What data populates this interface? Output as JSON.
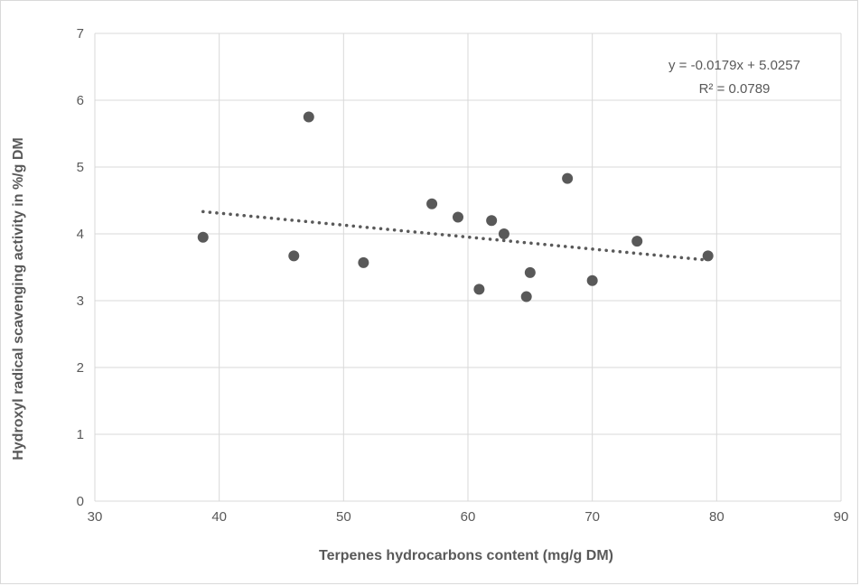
{
  "chart_data": {
    "type": "scatter",
    "title": "",
    "xlabel": "Terpenes hydrocarbons content (mg/g DM)",
    "ylabel": "Hydroxyl radical scavenging activity in %/g DM",
    "xlim": [
      30,
      90
    ],
    "ylim": [
      0,
      7
    ],
    "x_ticks": [
      30,
      40,
      50,
      60,
      70,
      80,
      90
    ],
    "y_ticks": [
      0,
      1,
      2,
      3,
      4,
      5,
      6,
      7
    ],
    "grid": true,
    "legend": "none",
    "colors": {
      "point": "#595959",
      "trendline": "#595959",
      "grid": "#d9d9d9",
      "text": "#595959"
    },
    "series": [
      {
        "x": [
          38.7,
          46.0,
          47.2,
          51.6,
          57.1,
          59.2,
          60.9,
          61.9,
          62.9,
          64.7,
          65.0,
          68.0,
          70.0,
          73.6,
          79.3
        ],
        "y": [
          3.95,
          3.67,
          5.75,
          3.57,
          4.45,
          4.25,
          3.17,
          4.2,
          4.0,
          3.06,
          3.42,
          4.83,
          3.3,
          3.89,
          3.67
        ]
      }
    ],
    "trendline": {
      "type": "linear",
      "slope": -0.0179,
      "intercept": 5.0257,
      "x_range": [
        38.7,
        79.3
      ],
      "style": "dotted",
      "equation": "y = -0.0179x + 5.0257",
      "r_squared": "R² = 0.0789"
    }
  }
}
